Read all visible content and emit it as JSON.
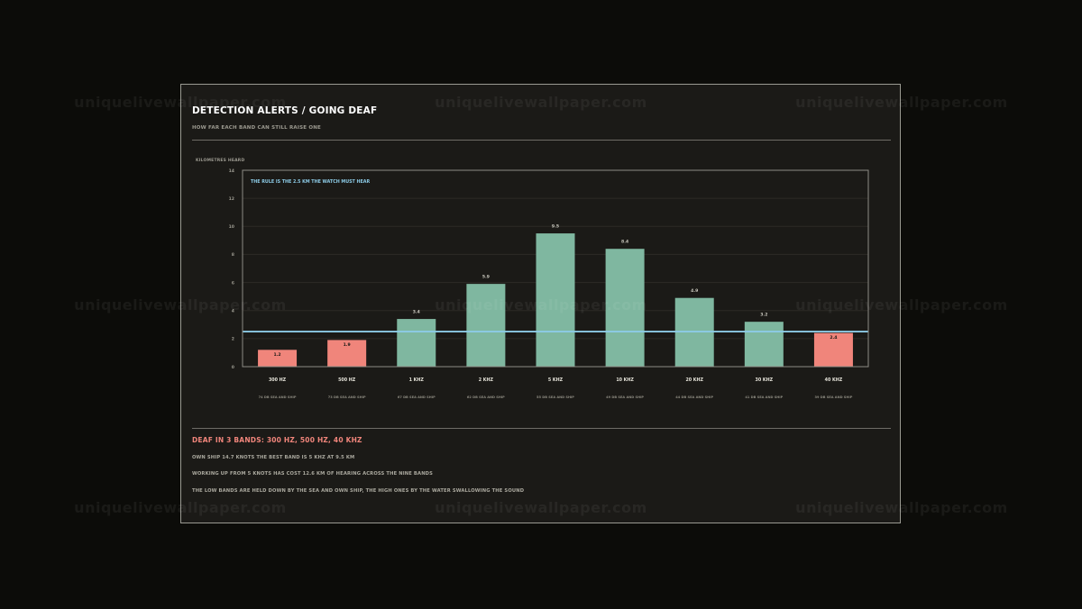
{
  "header": {
    "title": "DETECTION ALERTS / GOING DEAF",
    "subtitle": "HOW FAR EACH BAND CAN STILL RAISE ONE"
  },
  "watermark": "uniquelivewallpaper.com",
  "chart_data": {
    "type": "bar",
    "ylabel": "KILOMETRES HEARD",
    "ylim": [
      0,
      14
    ],
    "yticks": [
      0,
      2,
      4,
      6,
      8,
      10,
      12,
      14
    ],
    "grid": true,
    "categories": [
      "300 HZ",
      "500 HZ",
      "1 KHZ",
      "2 KHZ",
      "5 KHZ",
      "10 KHZ",
      "20 KHZ",
      "30 KHZ",
      "40 KHZ"
    ],
    "sublabels": [
      "74 DB SEA AND SHIP",
      "73 DB SEA AND SHIP",
      "67 DB SEA AND SHIP",
      "62 DB SEA AND SHIP",
      "55 DB SEA AND SHIP",
      "49 DB SEA AND SHIP",
      "44 DB SEA AND SHIP",
      "41 DB SEA AND SHIP",
      "39 DB SEA AND SHIP"
    ],
    "values": [
      1.2,
      1.9,
      3.4,
      5.9,
      9.5,
      8.4,
      4.9,
      3.2,
      2.4
    ],
    "value_labels": [
      "1.2",
      "1.9",
      "3.4",
      "5.9",
      "9.5",
      "8.4",
      "4.9",
      "3.2",
      "2.4"
    ],
    "threshold": 2.5,
    "threshold_label": "THE RULE IS THE 2.5 KM THE WATCH MUST HEAR",
    "colors": {
      "above": "#7fb7a0",
      "below": "#f0857b",
      "threshold": "#8ccbe6",
      "grid": "#2c2b27",
      "frame": "#8e8c86"
    }
  },
  "summary": {
    "headline": "DEAF IN 3 BANDS: 300 HZ, 500 HZ, 40 KHZ",
    "line1": "OWN SHIP 14.7 KNOTS   THE BEST BAND IS 5 KHZ AT 9.5 KM",
    "line2": "WORKING UP FROM 5 KNOTS HAS COST 12.6 KM OF HEARING ACROSS THE NINE BANDS",
    "line3": "THE LOW BANDS ARE HELD DOWN BY THE SEA AND OWN SHIP, THE HIGH ONES BY THE WATER SWALLOWING THE SOUND"
  }
}
